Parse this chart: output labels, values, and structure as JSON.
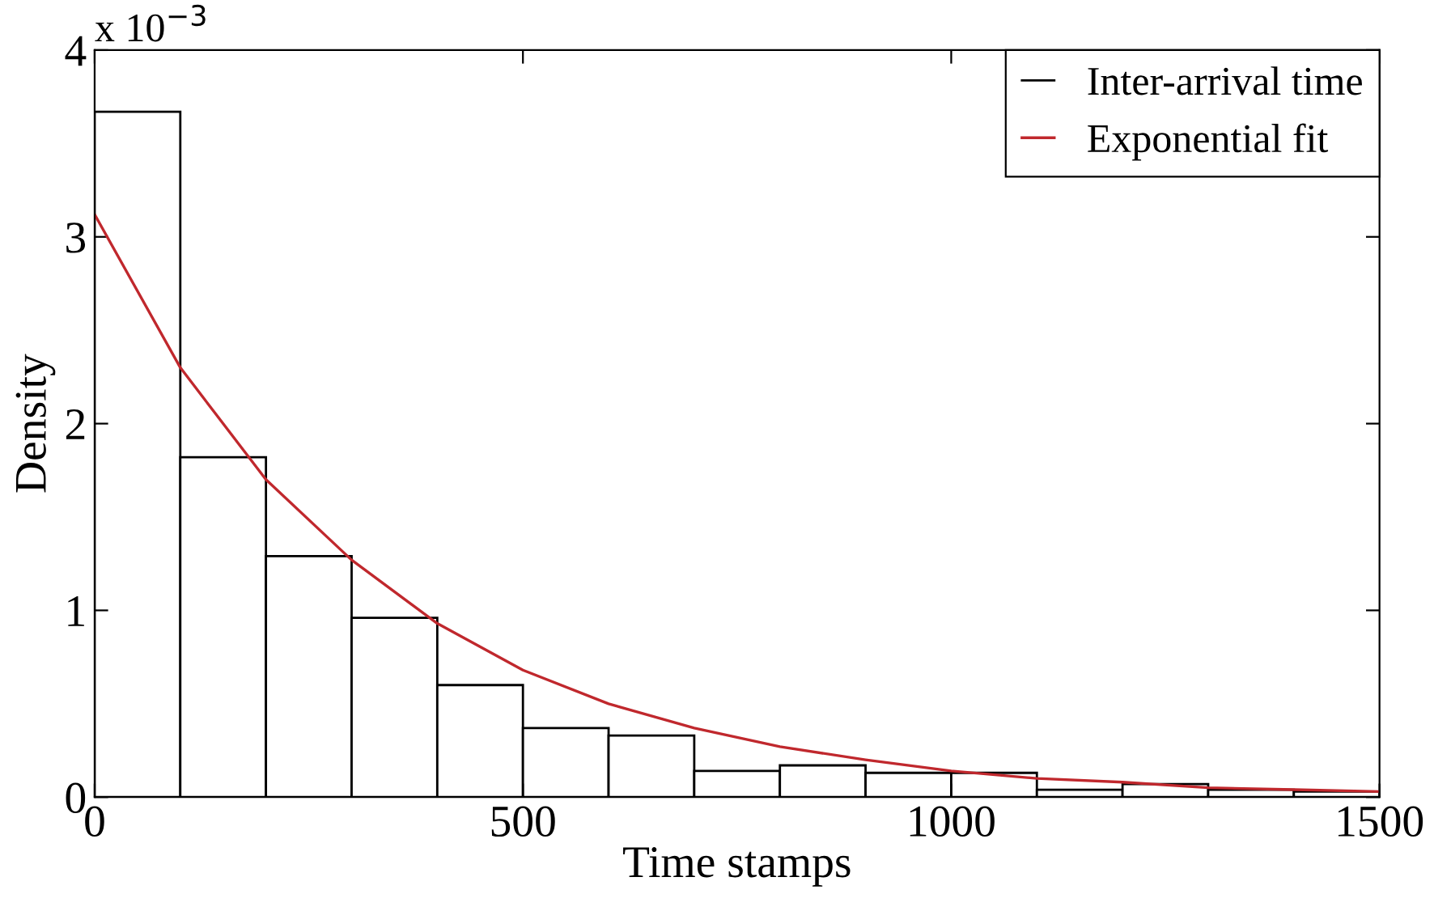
{
  "chart_data": {
    "type": "histogram",
    "xlabel": "Time stamps",
    "ylabel": "Density",
    "annotations": [
      "x 10$^{−3}$"
    ],
    "bins": [
      0,
      100,
      200,
      300,
      400,
      500,
      600,
      700,
      800,
      900,
      1000,
      1100,
      1200,
      1300,
      1400,
      1500
    ],
    "series": [
      {
        "name": "Inter-arrival time",
        "color": "#000000",
        "values": [
          3.67,
          1.82,
          1.29,
          0.96,
          0.6,
          0.37,
          0.33,
          0.14,
          0.17,
          0.13,
          0.13,
          0.04,
          0.07,
          0.04,
          0.03
        ]
      },
      {
        "name": "Exponential fit",
        "type": "line",
        "color": "#c0282d",
        "x": [
          0,
          100,
          200,
          300,
          400,
          500,
          600,
          700,
          800,
          900,
          1000,
          1100,
          1200,
          1300,
          1400,
          1500
        ],
        "values": [
          3.12,
          2.3,
          1.7,
          1.27,
          0.93,
          0.68,
          0.5,
          0.37,
          0.27,
          0.2,
          0.14,
          0.1,
          0.08,
          0.05,
          0.04,
          0.03
        ]
      }
    ],
    "xlim": [
      0,
      1500
    ],
    "xticks": [
      0,
      500,
      1000,
      1500
    ],
    "ylim": [
      0,
      4
    ],
    "yticks": [
      0,
      1,
      2,
      3,
      4
    ],
    "grid": false,
    "legend": "top right"
  }
}
